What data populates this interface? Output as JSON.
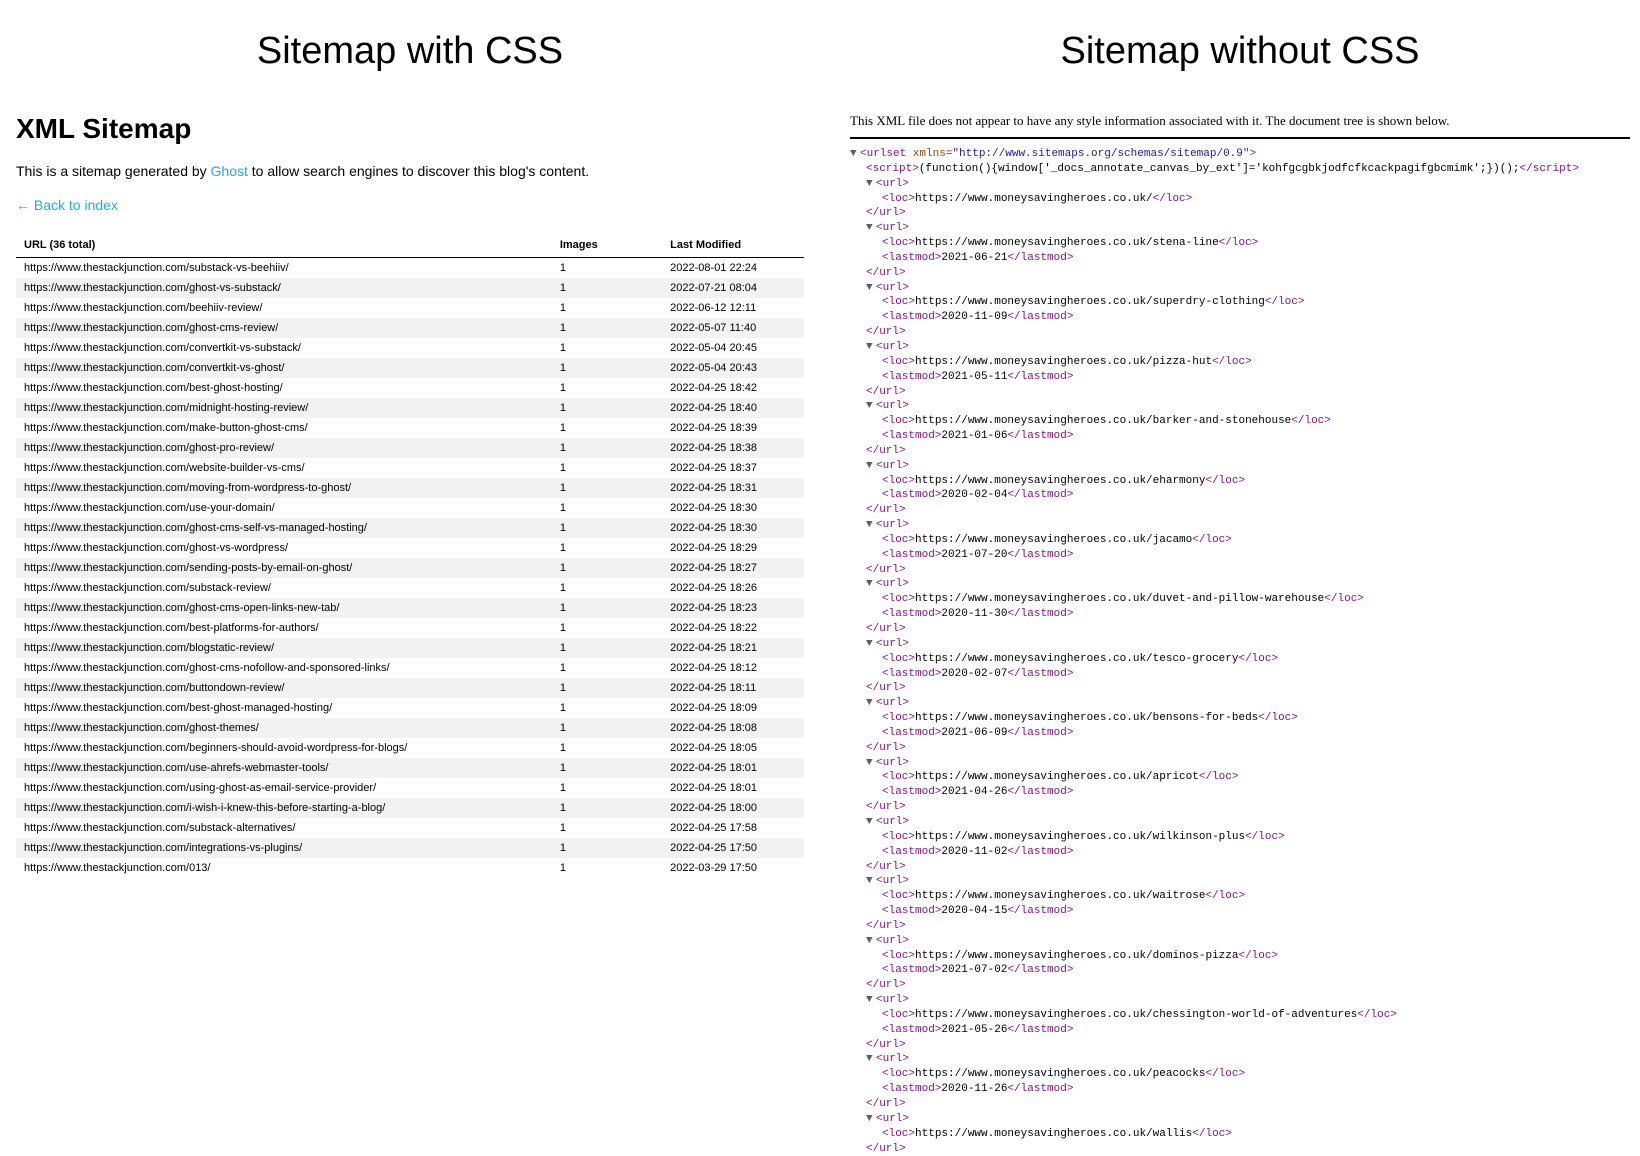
{
  "left": {
    "panel_title": "Sitemap with CSS",
    "heading": "XML Sitemap",
    "desc_before": "This is a sitemap generated by ",
    "desc_link": "Ghost",
    "desc_after": " to allow search engines to discover this blog's content.",
    "back_label": "← Back to index",
    "columns": {
      "url": "URL (36 total)",
      "images": "Images",
      "modified": "Last Modified"
    },
    "colors": {
      "link": "#1eaaf1",
      "row_alt_bg": "#f2f2f2",
      "header_border": "#000000"
    },
    "rows": [
      {
        "url": "https://www.thestackjunction.com/substack-vs-beehiiv/",
        "images": "1",
        "modified": "2022-08-01 22:24"
      },
      {
        "url": "https://www.thestackjunction.com/ghost-vs-substack/",
        "images": "1",
        "modified": "2022-07-21 08:04"
      },
      {
        "url": "https://www.thestackjunction.com/beehiiv-review/",
        "images": "1",
        "modified": "2022-06-12 12:11"
      },
      {
        "url": "https://www.thestackjunction.com/ghost-cms-review/",
        "images": "1",
        "modified": "2022-05-07 11:40"
      },
      {
        "url": "https://www.thestackjunction.com/convertkit-vs-substack/",
        "images": "1",
        "modified": "2022-05-04 20:45"
      },
      {
        "url": "https://www.thestackjunction.com/convertkit-vs-ghost/",
        "images": "1",
        "modified": "2022-05-04 20:43"
      },
      {
        "url": "https://www.thestackjunction.com/best-ghost-hosting/",
        "images": "1",
        "modified": "2022-04-25 18:42"
      },
      {
        "url": "https://www.thestackjunction.com/midnight-hosting-review/",
        "images": "1",
        "modified": "2022-04-25 18:40"
      },
      {
        "url": "https://www.thestackjunction.com/make-button-ghost-cms/",
        "images": "1",
        "modified": "2022-04-25 18:39"
      },
      {
        "url": "https://www.thestackjunction.com/ghost-pro-review/",
        "images": "1",
        "modified": "2022-04-25 18:38"
      },
      {
        "url": "https://www.thestackjunction.com/website-builder-vs-cms/",
        "images": "1",
        "modified": "2022-04-25 18:37"
      },
      {
        "url": "https://www.thestackjunction.com/moving-from-wordpress-to-ghost/",
        "images": "1",
        "modified": "2022-04-25 18:31"
      },
      {
        "url": "https://www.thestackjunction.com/use-your-domain/",
        "images": "1",
        "modified": "2022-04-25 18:30"
      },
      {
        "url": "https://www.thestackjunction.com/ghost-cms-self-vs-managed-hosting/",
        "images": "1",
        "modified": "2022-04-25 18:30"
      },
      {
        "url": "https://www.thestackjunction.com/ghost-vs-wordpress/",
        "images": "1",
        "modified": "2022-04-25 18:29"
      },
      {
        "url": "https://www.thestackjunction.com/sending-posts-by-email-on-ghost/",
        "images": "1",
        "modified": "2022-04-25 18:27"
      },
      {
        "url": "https://www.thestackjunction.com/substack-review/",
        "images": "1",
        "modified": "2022-04-25 18:26"
      },
      {
        "url": "https://www.thestackjunction.com/ghost-cms-open-links-new-tab/",
        "images": "1",
        "modified": "2022-04-25 18:23"
      },
      {
        "url": "https://www.thestackjunction.com/best-platforms-for-authors/",
        "images": "1",
        "modified": "2022-04-25 18:22"
      },
      {
        "url": "https://www.thestackjunction.com/blogstatic-review/",
        "images": "1",
        "modified": "2022-04-25 18:21"
      },
      {
        "url": "https://www.thestackjunction.com/ghost-cms-nofollow-and-sponsored-links/",
        "images": "1",
        "modified": "2022-04-25 18:12"
      },
      {
        "url": "https://www.thestackjunction.com/buttondown-review/",
        "images": "1",
        "modified": "2022-04-25 18:11"
      },
      {
        "url": "https://www.thestackjunction.com/best-ghost-managed-hosting/",
        "images": "1",
        "modified": "2022-04-25 18:09"
      },
      {
        "url": "https://www.thestackjunction.com/ghost-themes/",
        "images": "1",
        "modified": "2022-04-25 18:08"
      },
      {
        "url": "https://www.thestackjunction.com/beginners-should-avoid-wordpress-for-blogs/",
        "images": "1",
        "modified": "2022-04-25 18:05"
      },
      {
        "url": "https://www.thestackjunction.com/use-ahrefs-webmaster-tools/",
        "images": "1",
        "modified": "2022-04-25 18:01"
      },
      {
        "url": "https://www.thestackjunction.com/using-ghost-as-email-service-provider/",
        "images": "1",
        "modified": "2022-04-25 18:01"
      },
      {
        "url": "https://www.thestackjunction.com/i-wish-i-knew-this-before-starting-a-blog/",
        "images": "1",
        "modified": "2022-04-25 18:00"
      },
      {
        "url": "https://www.thestackjunction.com/substack-alternatives/",
        "images": "1",
        "modified": "2022-04-25 17:58"
      },
      {
        "url": "https://www.thestackjunction.com/integrations-vs-plugins/",
        "images": "1",
        "modified": "2022-04-25 17:50"
      },
      {
        "url": "https://www.thestackjunction.com/013/",
        "images": "1",
        "modified": "2022-03-29 17:50"
      }
    ]
  },
  "right": {
    "panel_title": "Sitemap without CSS",
    "notice": "This XML file does not appear to have any style information associated with it. The document tree is shown below.",
    "colors": {
      "tag": "#881280",
      "attr_name": "#994500",
      "attr_value": "#1a1aa6",
      "text": "#000000",
      "twisty": "#606060",
      "hr": "#000000"
    },
    "root": {
      "tag": "urlset",
      "attr_name": "xmlns",
      "attr_value": "http://www.sitemaps.org/schemas/sitemap/0.9"
    },
    "script_line": "(function(){window['_docs_annotate_canvas_by_ext']='kohfgcgbkjodfcfkcackpagifgbcmimk';})();",
    "entries": [
      {
        "loc": "https://www.moneysavingheroes.co.uk/",
        "lastmod": null
      },
      {
        "loc": "https://www.moneysavingheroes.co.uk/stena-line",
        "lastmod": "2021-06-21"
      },
      {
        "loc": "https://www.moneysavingheroes.co.uk/superdry-clothing",
        "lastmod": "2020-11-09"
      },
      {
        "loc": "https://www.moneysavingheroes.co.uk/pizza-hut",
        "lastmod": "2021-05-11"
      },
      {
        "loc": "https://www.moneysavingheroes.co.uk/barker-and-stonehouse",
        "lastmod": "2021-01-06"
      },
      {
        "loc": "https://www.moneysavingheroes.co.uk/eharmony",
        "lastmod": "2020-02-04"
      },
      {
        "loc": "https://www.moneysavingheroes.co.uk/jacamo",
        "lastmod": "2021-07-20"
      },
      {
        "loc": "https://www.moneysavingheroes.co.uk/duvet-and-pillow-warehouse",
        "lastmod": "2020-11-30"
      },
      {
        "loc": "https://www.moneysavingheroes.co.uk/tesco-grocery",
        "lastmod": "2020-02-07"
      },
      {
        "loc": "https://www.moneysavingheroes.co.uk/bensons-for-beds",
        "lastmod": "2021-06-09"
      },
      {
        "loc": "https://www.moneysavingheroes.co.uk/apricot",
        "lastmod": "2021-04-26"
      },
      {
        "loc": "https://www.moneysavingheroes.co.uk/wilkinson-plus",
        "lastmod": "2020-11-02"
      },
      {
        "loc": "https://www.moneysavingheroes.co.uk/waitrose",
        "lastmod": "2020-04-15"
      },
      {
        "loc": "https://www.moneysavingheroes.co.uk/dominos-pizza",
        "lastmod": "2021-07-02"
      },
      {
        "loc": "https://www.moneysavingheroes.co.uk/chessington-world-of-adventures",
        "lastmod": "2021-05-26"
      },
      {
        "loc": "https://www.moneysavingheroes.co.uk/peacocks",
        "lastmod": "2020-11-26"
      },
      {
        "loc": "https://www.moneysavingheroes.co.uk/wallis",
        "lastmod": null
      }
    ]
  }
}
